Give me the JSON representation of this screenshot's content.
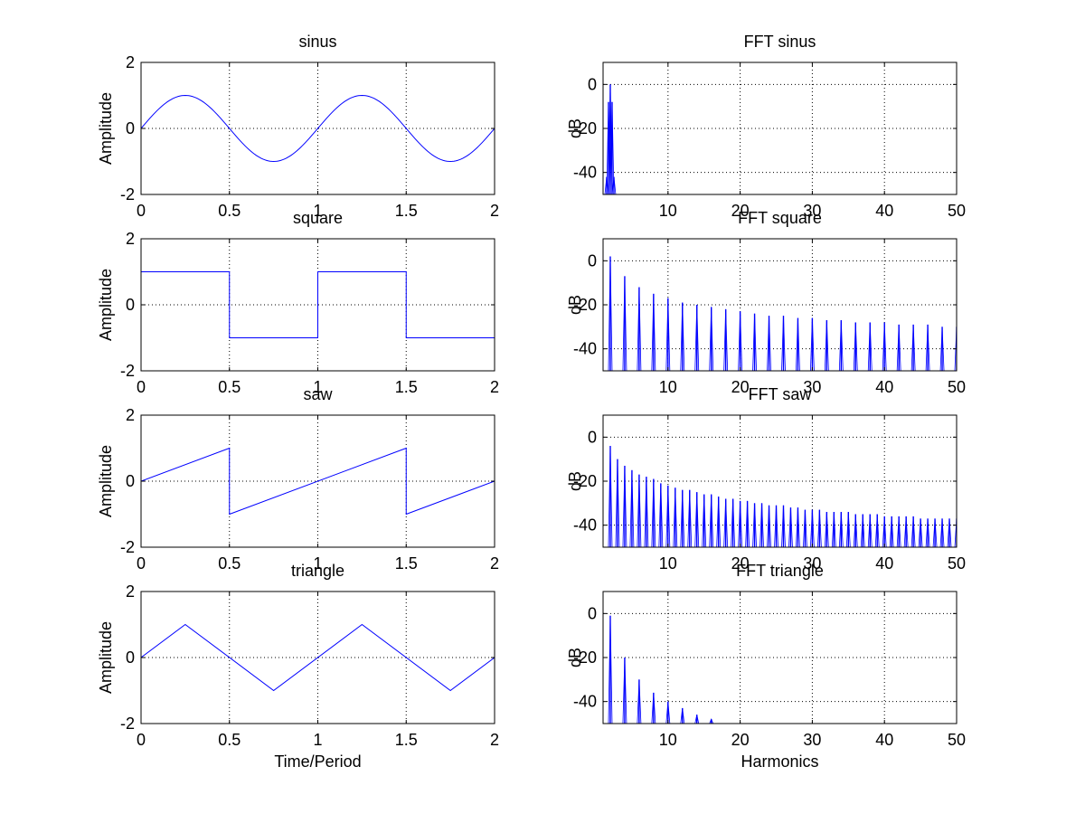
{
  "figure": {
    "background": "#ffffff",
    "line_color": "#0000ff",
    "axis_color": "#000000"
  },
  "chart_data": [
    {
      "id": "sinus",
      "type": "line",
      "title": "sinus",
      "xlabel": "",
      "ylabel": "Amplitude",
      "xlim": [
        0,
        2
      ],
      "ylim": [
        -2,
        2
      ],
      "xticks": [
        0,
        0.5,
        1,
        1.5,
        2
      ],
      "xtick_labels": [
        "0",
        "0.5",
        "1",
        "1.5",
        "2"
      ],
      "yticks": [
        -2,
        0,
        2
      ],
      "ytick_labels": [
        "-2",
        "0",
        "2"
      ],
      "grid": true,
      "line_color": "#0000ff",
      "series": [
        {
          "x": [
            0,
            0.125,
            0.25,
            0.375,
            0.5,
            0.625,
            0.75,
            0.875,
            1,
            1.125,
            1.25,
            1.375,
            1.5,
            1.625,
            1.75,
            1.875,
            2
          ],
          "y": [
            0,
            0.71,
            1,
            0.71,
            0,
            -0.71,
            -1,
            -0.71,
            0,
            0.71,
            1,
            0.71,
            0,
            -0.71,
            -1,
            -0.71,
            0
          ]
        }
      ]
    },
    {
      "id": "fft-sinus",
      "type": "stem",
      "title": "FFT sinus",
      "xlabel": "",
      "ylabel": "dB",
      "xlim": [
        1,
        50
      ],
      "ylim": [
        -50,
        10
      ],
      "xticks": [
        10,
        20,
        30,
        40,
        50
      ],
      "xtick_labels": [
        "10",
        "20",
        "30",
        "40",
        "50"
      ],
      "yticks": [
        -40,
        -20,
        0
      ],
      "ytick_labels": [
        "-40",
        "-20",
        "0"
      ],
      "grid": true,
      "line_color": "#0000ff",
      "series": [
        {
          "x": [
            1.5,
            1.75,
            2,
            2.25,
            2.5
          ],
          "y": [
            -42,
            -8,
            0,
            -8,
            -42
          ]
        }
      ]
    },
    {
      "id": "square",
      "type": "line",
      "title": "square",
      "xlabel": "",
      "ylabel": "Amplitude",
      "xlim": [
        0,
        2
      ],
      "ylim": [
        -2,
        2
      ],
      "xticks": [
        0,
        0.5,
        1,
        1.5,
        2
      ],
      "xtick_labels": [
        "0",
        "0.5",
        "1",
        "1.5",
        "2"
      ],
      "yticks": [
        -2,
        0,
        2
      ],
      "ytick_labels": [
        "-2",
        "0",
        "2"
      ],
      "grid": true,
      "line_color": "#0000ff",
      "series": [
        {
          "x": [
            0,
            0.5,
            0.5,
            1,
            1,
            1.5,
            1.5,
            2
          ],
          "y": [
            1,
            1,
            -1,
            -1,
            1,
            1,
            -1,
            -1
          ]
        }
      ]
    },
    {
      "id": "fft-square",
      "type": "stem",
      "title": "FFT square",
      "xlabel": "",
      "ylabel": "dB",
      "xlim": [
        1,
        50
      ],
      "ylim": [
        -50,
        10
      ],
      "xticks": [
        10,
        20,
        30,
        40,
        50
      ],
      "xtick_labels": [
        "10",
        "20",
        "30",
        "40",
        "50"
      ],
      "yticks": [
        -40,
        -20,
        0
      ],
      "ytick_labels": [
        "-40",
        "-20",
        "0"
      ],
      "grid": true,
      "line_color": "#0000ff",
      "series": [
        {
          "x": [
            2,
            4,
            6,
            8,
            10,
            12,
            14,
            16,
            18,
            20,
            22,
            24,
            26,
            28,
            30,
            32,
            34,
            36,
            38,
            40,
            42,
            44,
            46,
            48,
            50
          ],
          "y": [
            2,
            -7,
            -12,
            -15,
            -17,
            -19,
            -20,
            -21,
            -22,
            -23,
            -24,
            -25,
            -25,
            -26,
            -26,
            -27,
            -27,
            -28,
            -28,
            -28,
            -29,
            -29,
            -29,
            -30,
            -30
          ]
        }
      ]
    },
    {
      "id": "saw",
      "type": "line",
      "title": "saw",
      "xlabel": "",
      "ylabel": "Amplitude",
      "xlim": [
        0,
        2
      ],
      "ylim": [
        -2,
        2
      ],
      "xticks": [
        0,
        0.5,
        1,
        1.5,
        2
      ],
      "xtick_labels": [
        "0",
        "0.5",
        "1",
        "1.5",
        "2"
      ],
      "yticks": [
        -2,
        0,
        2
      ],
      "ytick_labels": [
        "-2",
        "0",
        "2"
      ],
      "grid": true,
      "line_color": "#0000ff",
      "series": [
        {
          "x": [
            0,
            0.5,
            0.5,
            1.5,
            1.5,
            2
          ],
          "y": [
            0,
            1,
            -1,
            1,
            -1,
            0
          ]
        }
      ]
    },
    {
      "id": "fft-saw",
      "type": "stem",
      "title": "FFT saw",
      "xlabel": "",
      "ylabel": "dB",
      "xlim": [
        1,
        50
      ],
      "ylim": [
        -50,
        10
      ],
      "xticks": [
        10,
        20,
        30,
        40,
        50
      ],
      "xtick_labels": [
        "10",
        "20",
        "30",
        "40",
        "50"
      ],
      "yticks": [
        -40,
        -20,
        0
      ],
      "ytick_labels": [
        "-40",
        "-20",
        "0"
      ],
      "grid": true,
      "line_color": "#0000ff",
      "series": [
        {
          "x": [
            2,
            3,
            4,
            5,
            6,
            7,
            8,
            9,
            10,
            11,
            12,
            13,
            14,
            15,
            16,
            17,
            18,
            19,
            20,
            21,
            22,
            23,
            24,
            25,
            26,
            27,
            28,
            29,
            30,
            31,
            32,
            33,
            34,
            35,
            36,
            37,
            38,
            39,
            40,
            41,
            42,
            43,
            44,
            45,
            46,
            47,
            48,
            49,
            50
          ],
          "y": [
            -4,
            -10,
            -13,
            -15,
            -17,
            -18,
            -19,
            -21,
            -22,
            -23,
            -24,
            -24,
            -25,
            -26,
            -26,
            -27,
            -28,
            -28,
            -29,
            -29,
            -30,
            -30,
            -31,
            -31,
            -31,
            -32,
            -32,
            -33,
            -33,
            -33,
            -34,
            -34,
            -34,
            -34,
            -35,
            -35,
            -35,
            -35,
            -36,
            -36,
            -36,
            -36,
            -36,
            -37,
            -37,
            -37,
            -37,
            -37,
            -37
          ]
        }
      ]
    },
    {
      "id": "triangle",
      "type": "line",
      "title": "triangle",
      "xlabel": "Time/Period",
      "ylabel": "Amplitude",
      "xlim": [
        0,
        2
      ],
      "ylim": [
        -2,
        2
      ],
      "xticks": [
        0,
        0.5,
        1,
        1.5,
        2
      ],
      "xtick_labels": [
        "0",
        "0.5",
        "1",
        "1.5",
        "2"
      ],
      "yticks": [
        -2,
        0,
        2
      ],
      "ytick_labels": [
        "-2",
        "0",
        "2"
      ],
      "grid": true,
      "line_color": "#0000ff",
      "series": [
        {
          "x": [
            0,
            0.25,
            0.75,
            1.25,
            1.75,
            2
          ],
          "y": [
            0,
            1,
            -1,
            1,
            -1,
            0
          ]
        }
      ]
    },
    {
      "id": "fft-triangle",
      "type": "stem",
      "title": "FFT triangle",
      "xlabel": "Harmonics",
      "ylabel": "dB",
      "xlim": [
        1,
        50
      ],
      "ylim": [
        -50,
        10
      ],
      "xticks": [
        10,
        20,
        30,
        40,
        50
      ],
      "xtick_labels": [
        "10",
        "20",
        "30",
        "40",
        "50"
      ],
      "yticks": [
        -40,
        -20,
        0
      ],
      "ytick_labels": [
        "-40",
        "-20",
        "0"
      ],
      "grid": true,
      "line_color": "#0000ff",
      "series": [
        {
          "x": [
            2,
            4,
            6,
            8,
            10,
            12,
            14,
            16
          ],
          "y": [
            -1,
            -20,
            -30,
            -36,
            -40,
            -43,
            -46,
            -48
          ]
        }
      ]
    }
  ]
}
